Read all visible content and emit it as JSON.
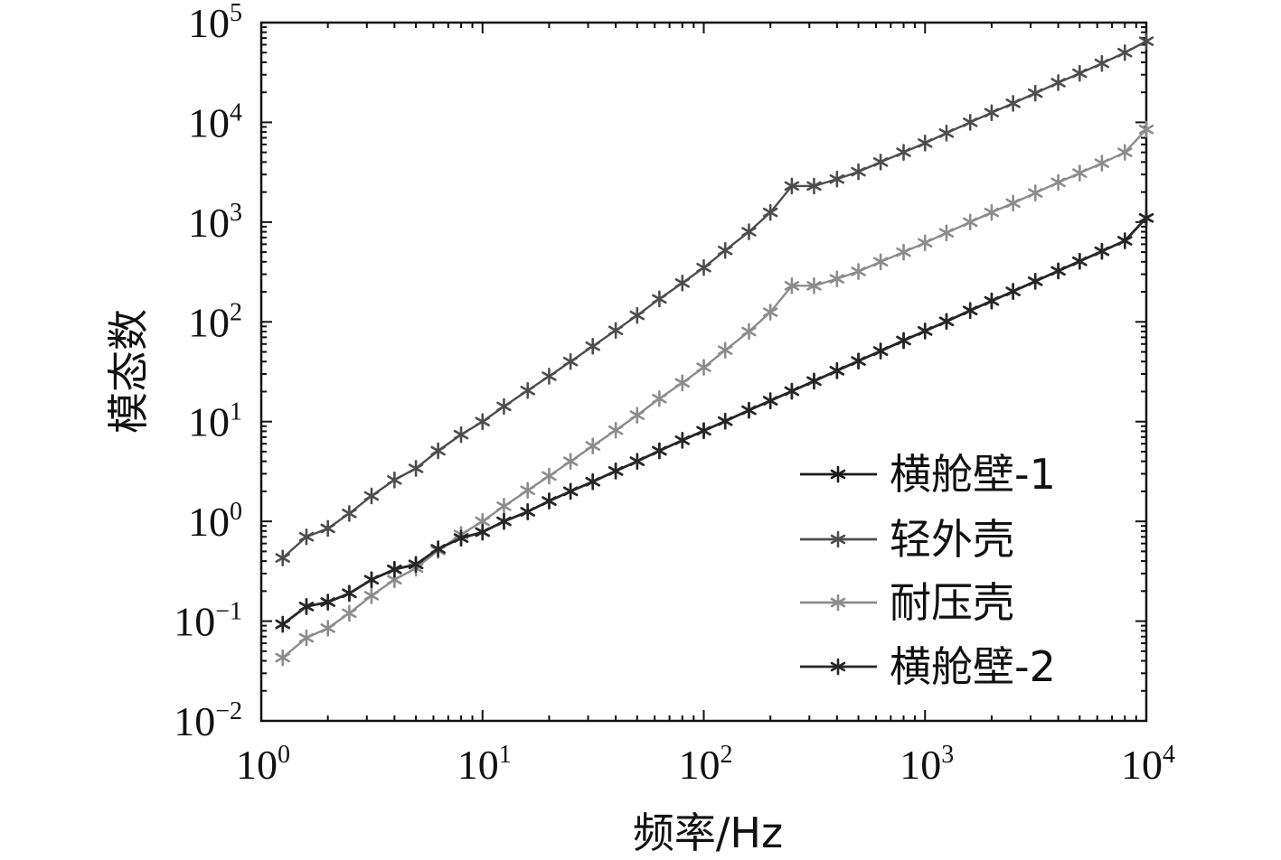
{
  "chart_data": {
    "type": "line",
    "xscale": "log",
    "yscale": "log",
    "xlim": [
      1,
      10000
    ],
    "ylim": [
      0.01,
      100000
    ],
    "xlabel": "频率/Hz",
    "ylabel": "模态数",
    "legend_position": "bottom-right",
    "grid": false,
    "x_ticks": [
      {
        "base": "10",
        "exp": "0",
        "value": 1
      },
      {
        "base": "10",
        "exp": "1",
        "value": 10
      },
      {
        "base": "10",
        "exp": "2",
        "value": 100
      },
      {
        "base": "10",
        "exp": "3",
        "value": 1000
      },
      {
        "base": "10",
        "exp": "4",
        "value": 10000
      }
    ],
    "y_ticks": [
      {
        "base": "10",
        "exp": "−2",
        "value": 0.01
      },
      {
        "base": "10",
        "exp": "−1",
        "value": 0.1
      },
      {
        "base": "10",
        "exp": "0",
        "value": 1
      },
      {
        "base": "10",
        "exp": "1",
        "value": 10
      },
      {
        "base": "10",
        "exp": "2",
        "value": 100
      },
      {
        "base": "10",
        "exp": "3",
        "value": 1000
      },
      {
        "base": "10",
        "exp": "4",
        "value": 10000
      },
      {
        "base": "10",
        "exp": "5",
        "value": 100000
      }
    ],
    "x": [
      1.25,
      1.6,
      2,
      2.5,
      3.15,
      4,
      5,
      6.3,
      8,
      10,
      12.5,
      16,
      20,
      25,
      31.5,
      40,
      50,
      63,
      80,
      100,
      125,
      160,
      200,
      250,
      315,
      400,
      500,
      630,
      800,
      1000,
      1250,
      1600,
      2000,
      2500,
      3150,
      4000,
      5000,
      6300,
      8000,
      10000
    ],
    "series": [
      {
        "name": "横舱壁-1",
        "color": "#1a1a1a",
        "values": [
          0.093,
          0.14,
          0.155,
          0.19,
          0.26,
          0.33,
          0.37,
          0.53,
          0.68,
          0.78,
          1.0,
          1.25,
          1.6,
          2.0,
          2.5,
          3.2,
          4.0,
          5.1,
          6.5,
          8.1,
          10.1,
          13,
          16.2,
          20.2,
          25.5,
          32.4,
          40.5,
          51,
          65,
          81,
          101,
          130,
          162,
          202,
          255,
          324,
          405,
          510,
          650,
          1100
        ]
      },
      {
        "name": "轻外壳",
        "color": "#4d4d4d",
        "values": [
          0.43,
          0.7,
          0.85,
          1.2,
          1.8,
          2.6,
          3.4,
          5.1,
          7.4,
          10,
          14.2,
          20.5,
          28.5,
          40,
          57,
          82,
          116,
          170,
          245,
          350,
          520,
          800,
          1250,
          2300,
          2300,
          2700,
          3200,
          4000,
          5000,
          6200,
          7800,
          10000,
          12500,
          15500,
          19600,
          25000,
          31000,
          39000,
          50000,
          65000
        ]
      },
      {
        "name": "耐压壳",
        "color": "#8c8c8c",
        "values": [
          0.043,
          0.068,
          0.085,
          0.12,
          0.18,
          0.26,
          0.34,
          0.51,
          0.74,
          1.0,
          1.42,
          2.05,
          2.85,
          4.0,
          5.7,
          8.2,
          11.6,
          17,
          24.5,
          35,
          52,
          80,
          125,
          230,
          230,
          270,
          320,
          400,
          500,
          620,
          780,
          1000,
          1250,
          1550,
          1960,
          2500,
          3100,
          3900,
          5000,
          8500
        ]
      },
      {
        "name": "横舱壁-2",
        "color": "#262626",
        "values": [
          0.093,
          0.14,
          0.155,
          0.19,
          0.26,
          0.33,
          0.37,
          0.53,
          0.68,
          0.78,
          1.0,
          1.25,
          1.6,
          2.0,
          2.5,
          3.2,
          4.0,
          5.1,
          6.5,
          8.1,
          10.1,
          13,
          16.2,
          20.2,
          25.5,
          32.4,
          40.5,
          51,
          65,
          81,
          101,
          130,
          162,
          202,
          255,
          324,
          405,
          510,
          650,
          1100
        ]
      }
    ]
  }
}
